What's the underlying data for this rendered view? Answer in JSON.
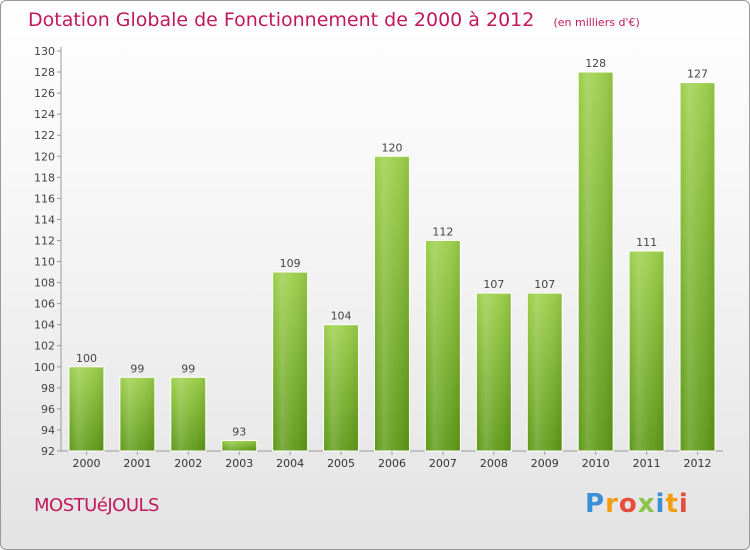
{
  "header": {
    "title": "Dotation Globale de Fonctionnement de 2000 à 2012",
    "subtitle": "(en milliers d'€)"
  },
  "footer": {
    "commune": "MOSTUéJOULS",
    "logo_letters": [
      "P",
      "r",
      "o",
      "x",
      "i",
      "t",
      "i"
    ]
  },
  "chart_data": {
    "type": "bar",
    "title": "Dotation Globale de Fonctionnement de 2000 à 2012",
    "subtitle": "(en milliers d'€)",
    "xlabel": "",
    "ylabel": "",
    "categories": [
      "2000",
      "2001",
      "2002",
      "2003",
      "2004",
      "2005",
      "2006",
      "2007",
      "2008",
      "2009",
      "2010",
      "2011",
      "2012"
    ],
    "values": [
      100,
      99,
      99,
      93,
      109,
      104,
      120,
      112,
      107,
      107,
      128,
      111,
      127
    ],
    "ylim": [
      92,
      130
    ],
    "ytick_step": 2,
    "grid": false,
    "data_labels": true,
    "bar_color": "#7cb82f"
  }
}
